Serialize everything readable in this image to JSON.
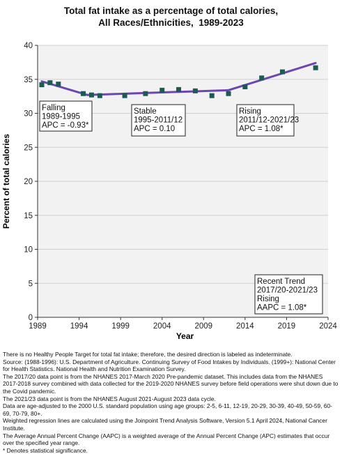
{
  "chart_data": {
    "type": "scatter",
    "title_lines": [
      "Total fat intake as a percentage of total calories,",
      "All Races/Ethnicities,  1989-2023"
    ],
    "xlabel": "Year",
    "ylabel": "Percent of total calories",
    "xlim": [
      1989,
      2024
    ],
    "ylim": [
      0,
      40
    ],
    "x_ticks": [
      1989,
      1994,
      1999,
      2004,
      2009,
      2014,
      2019,
      2024
    ],
    "y_ticks": [
      0,
      5,
      10,
      15,
      20,
      25,
      30,
      35,
      40
    ],
    "grid": "horizontal",
    "colors": {
      "points": "#1c5a55",
      "trend": "#6e46b0",
      "grid": "#cfcfcf",
      "plot_bg": "#f2f2f2"
    },
    "series": [
      {
        "points": [
          [
            1989.5,
            34.2
          ],
          [
            1990.5,
            34.5
          ],
          [
            1991.5,
            34.3
          ],
          [
            1994.5,
            32.9
          ],
          [
            1995.5,
            32.7
          ],
          [
            1996.5,
            32.6
          ],
          [
            1999.5,
            32.6
          ],
          [
            2002,
            32.9
          ],
          [
            2004,
            33.4
          ],
          [
            2006,
            33.5
          ],
          [
            2008,
            33.3
          ],
          [
            2010,
            32.6
          ],
          [
            2012,
            32.9
          ],
          [
            2014,
            33.9
          ],
          [
            2016,
            35.2
          ],
          [
            2018.5,
            36.1
          ],
          [
            2022.5,
            36.7
          ]
        ]
      }
    ],
    "trend_segments": [
      {
        "x": [
          1989.5,
          1995
        ],
        "y": [
          34.7,
          32.7
        ]
      },
      {
        "x": [
          1995,
          2012
        ],
        "y": [
          32.7,
          33.4
        ]
      },
      {
        "x": [
          2012,
          2022.5
        ],
        "y": [
          33.4,
          37.4
        ]
      }
    ],
    "annotations": [
      {
        "lines": [
          "Falling",
          "1989-1995",
          "APC = -0.93*"
        ]
      },
      {
        "lines": [
          "Stable",
          "1995-2011/12",
          "APC =  0.10"
        ]
      },
      {
        "lines": [
          "Rising",
          "2011/12-2021/23",
          "APC =  1.08*"
        ]
      },
      {
        "lines": [
          "Recent Trend",
          "2017/20-2021/23",
          "Rising",
          "AAPC =  1.08*"
        ]
      }
    ]
  },
  "footnotes": [
    "There is no Healthy People Target for total fat intake; therefore, the desired direction is labeled as indeterminate.",
    "Source: (1988-1996): U.S. Department of Agriculture. Continuing Survey of Food Intakes by Individuals. (1999+): National Center for Health Statistics. National Health and Nutrition Examination Survey.",
    "The 2017/20 data point is from the NHANES 2017-March 2020 Pre-pandemic dataset. This includes data from the NHANES 2017-2018 survey combined with data collected for the 2019-2020 NHANES survey before field operations were shut down due to the Covid pandemic.",
    "The 2021/23 data point is from the NHANES August 2021-August 2023 data cycle.",
    "Data are age-adjusted to the 2000 U.S. standard population using age groups: 2-5, 6-11, 12-19, 20-29, 30-39, 40-49, 50-59, 60-69, 70-79, 80+.",
    "Weighted regression lines are calculated using the Joinpoint Trend Analysis Software, Version 5.1 April 2024, National Cancer Institute.",
    "The Average Annual Percent Change (AAPC) is a weighted average of the Annual Percent Change (APC) estimates that occur over the specified year range.",
    "* Denotes statistical significance."
  ]
}
